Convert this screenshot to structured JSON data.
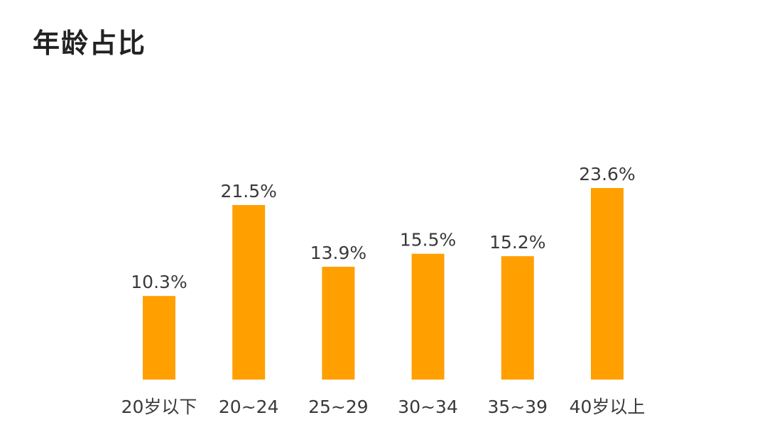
{
  "title": "年龄占比",
  "colors": {
    "bar": "#FFA000",
    "text": "#3a3a3a"
  },
  "chart_data": {
    "type": "bar",
    "title": "年龄占比",
    "xlabel": "",
    "ylabel": "",
    "categories": [
      "20岁以下",
      "20~24",
      "25~29",
      "30~34",
      "35~39",
      "40岁以上"
    ],
    "values": [
      10.3,
      21.5,
      13.9,
      15.5,
      15.2,
      23.6
    ],
    "value_labels": [
      "10.3%",
      "21.5%",
      "13.9%",
      "15.5%",
      "15.2%",
      "23.6%"
    ],
    "ylim": [
      0,
      23.6
    ],
    "grid": false,
    "legend": "none"
  }
}
